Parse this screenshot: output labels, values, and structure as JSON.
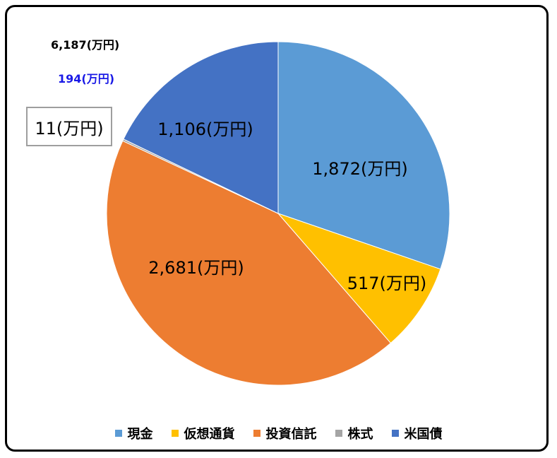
{
  "chart_data": {
    "type": "pie",
    "total_label": "6,187(万円)",
    "change_label": "194(万円)",
    "categories": [
      "現金",
      "仮想通貨",
      "投資信託",
      "株式",
      "米国債"
    ],
    "values": [
      1872,
      517,
      2681,
      11,
      1106
    ],
    "data_labels": [
      "1,872(万円)",
      "517(万円)",
      "2,681(万円)",
      "11(万円)",
      "1,106(万円)"
    ],
    "colors": [
      "#5b9bd5",
      "#ffc000",
      "#ed7d31",
      "#a5a5a5",
      "#4472c4"
    ],
    "legend_position": "bottom",
    "start_angle_deg": 0,
    "direction": "clockwise"
  }
}
